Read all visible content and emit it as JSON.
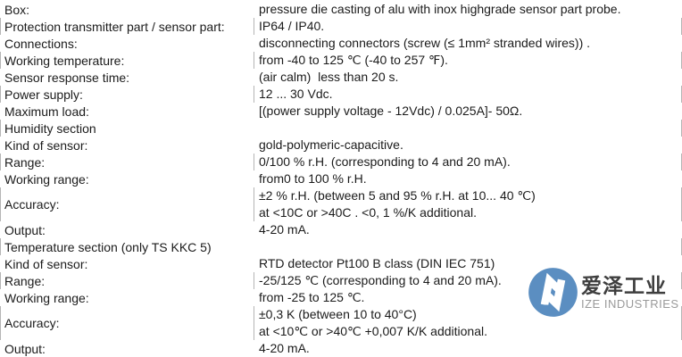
{
  "page": {
    "background": "#ffffff",
    "text_color": "#1b1b1b",
    "cell_border_color": "#b5b5b5"
  },
  "spec_table": {
    "rows": [
      {
        "label": "Box:",
        "value": "pressure die casting of alu with inox highgrade sensor part probe.",
        "bordered": false
      },
      {
        "label": "Protection transmitter part / sensor part:",
        "value": "IP64 / IP40.",
        "bordered": true
      },
      {
        "label": "Connections:",
        "value": "disconnecting connectors (screw (≤ 1mm² stranded wires)) .",
        "bordered": false
      },
      {
        "label": "Working temperature:",
        "value": "from -40 to 125 ℃ (-40 to 257 ℉).",
        "bordered": true
      },
      {
        "label": "Sensor response time:",
        "value": "(air calm)  less than 20 s.",
        "bordered": false
      },
      {
        "label": "Power supply:",
        "value": "12 ... 30 Vdc.",
        "bordered": true
      },
      {
        "label": "Maximum load:",
        "value": "[(power supply voltage - 12Vdc) / 0.025A]- 50Ω.",
        "bordered": false
      },
      {
        "label": "Humidity section",
        "value": "",
        "bordered": true
      },
      {
        "label": "Kind of sensor:",
        "value": "gold-polymeric-capacitive.",
        "bordered": false
      },
      {
        "label": "Range:",
        "value": "0/100 % r.H. (corresponding to 4 and 20 mA).",
        "bordered": true
      },
      {
        "label": "Working range:",
        "value": "from0 to 100 % r.H.",
        "bordered": false
      },
      {
        "label": "Accuracy:",
        "value": "±2 % r.H. (between 5 and 95 % r.H. at 10... 40 ℃)\nat <10C or >40C . <0, 1 %/K additional.",
        "bordered": true
      },
      {
        "label": "Output:",
        "value": "4-20 mA.",
        "bordered": false
      },
      {
        "label": "Temperature section (only TS KKC 5)",
        "value": "",
        "bordered": true
      },
      {
        "label": "Kind of sensor:",
        "value": "RTD detector Pt100 B class (DIN IEC 751)",
        "bordered": false
      },
      {
        "label": "Range:",
        "value": "-25/125 ℃ (corresponding to 4 and 20 mA).",
        "bordered": true
      },
      {
        "label": "Working range:",
        "value": "from -25 to 125 ℃.",
        "bordered": false
      },
      {
        "label": "Accuracy:",
        "value": "±0,3 K (between 10 to 40°C)\nat <10℃ or >40℃ +0,007 K/K additional.",
        "bordered": true
      },
      {
        "label": "Output:",
        "value": "4-20 mA.",
        "bordered": false
      }
    ]
  },
  "logo": {
    "brand_cn": "爱泽工业",
    "brand_en": "IZE INDUSTRIES",
    "mark_color": "#5b8ec1"
  }
}
